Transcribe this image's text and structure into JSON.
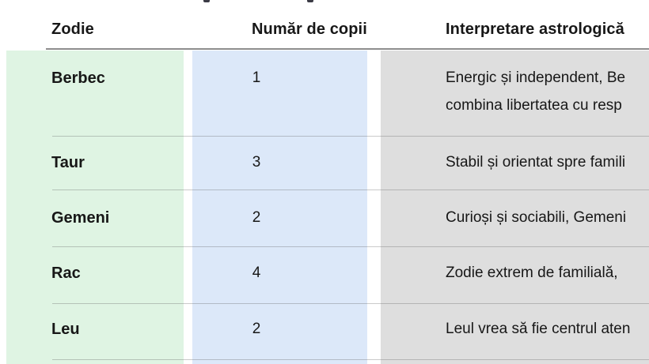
{
  "table": {
    "columns": [
      {
        "key": "zodie",
        "label": "Zodie",
        "band_color": "#dff4e3"
      },
      {
        "key": "numar_de_copii",
        "label": "Număr de copii",
        "band_color": "#dce8f9"
      },
      {
        "key": "interpretare",
        "label": "Interpretare astrologică",
        "band_color": "#dedede"
      }
    ],
    "rows": [
      {
        "zodie": "Berbec",
        "numar_de_copii": "1",
        "interpretare_lines": [
          "Energic și independent, Be",
          "combina libertatea cu resp"
        ]
      },
      {
        "zodie": "Taur",
        "numar_de_copii": "3",
        "interpretare_lines": [
          "Stabil și orientat spre famili"
        ]
      },
      {
        "zodie": "Gemeni",
        "numar_de_copii": "2",
        "interpretare_lines": [
          "Curioși și sociabili, Gemeni"
        ]
      },
      {
        "zodie": "Rac",
        "numar_de_copii": "4",
        "interpretare_lines": [
          "Zodie extrem de familială,"
        ]
      },
      {
        "zodie": "Leu",
        "numar_de_copii": "2",
        "interpretare_lines": [
          "Leul vrea să fie centrul aten"
        ]
      }
    ]
  },
  "chart_data": {
    "type": "table",
    "title": "",
    "categories": [
      "Berbec",
      "Taur",
      "Gemeni",
      "Rac",
      "Leu"
    ],
    "values": [
      1,
      3,
      2,
      4,
      2
    ],
    "xlabel": "Zodie",
    "ylabel": "Număr de copii"
  },
  "colors": {
    "page_background": "#ffffff",
    "zodie_band": "#dff4e3",
    "numar_band": "#dce8f9",
    "interpretare_band": "#dedede",
    "header_rule": "#8d8d8d",
    "row_separator": "#9f9f9f",
    "text": "#171717"
  }
}
